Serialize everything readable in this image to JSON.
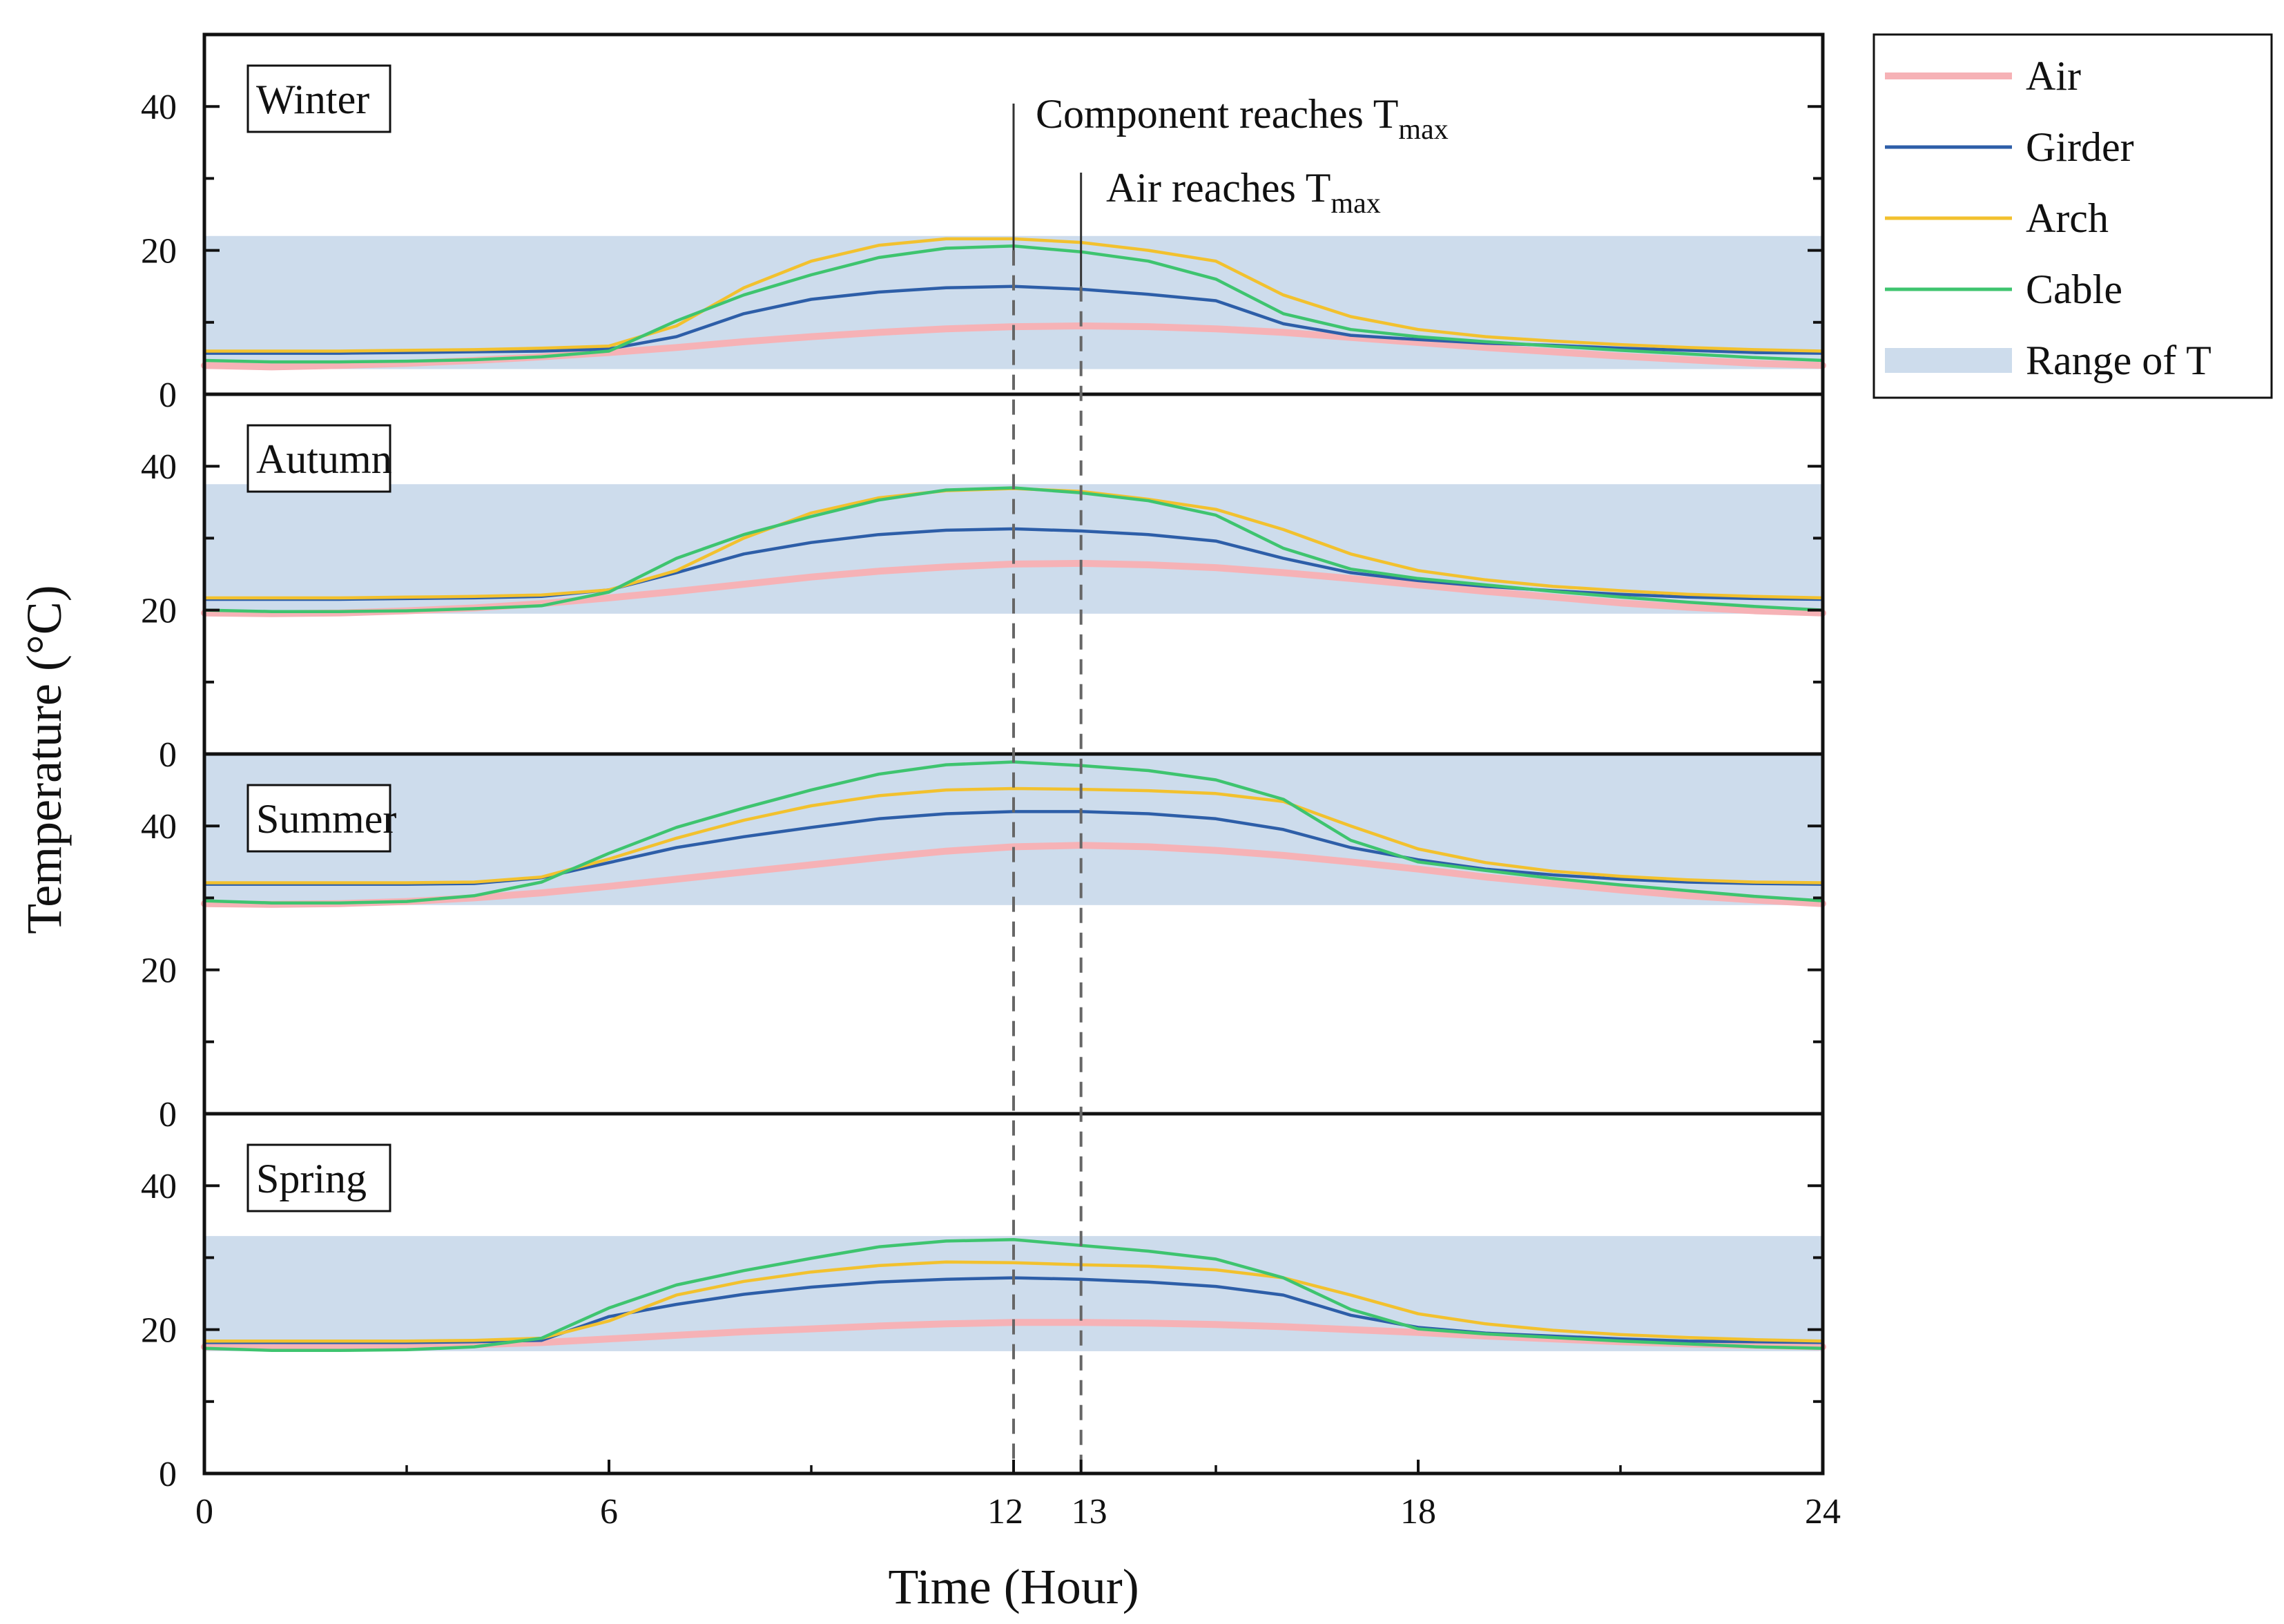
{
  "chart_data": {
    "type": "line",
    "xlabel": "Time (Hour)",
    "ylabel": "Temperature (°C)",
    "xlim": [
      0,
      24
    ],
    "ylim": [
      0,
      50
    ],
    "x_ticks": [
      0,
      6,
      12,
      13,
      18,
      24
    ],
    "y_tick_labels": [
      "0",
      "20",
      "40"
    ],
    "x": [
      0,
      1,
      2,
      3,
      4,
      5,
      6,
      7,
      8,
      9,
      10,
      11,
      12,
      13,
      14,
      15,
      16,
      17,
      18,
      19,
      20,
      21,
      22,
      23,
      24
    ],
    "colors": {
      "Air": "#f6b2b6",
      "Girder": "#2d5ea8",
      "Arch": "#f2c12e",
      "Cable": "#3ec46f",
      "Range of T": "#cddcec",
      "guide": "#666666"
    },
    "legend": [
      {
        "name": "Air",
        "kind": "line"
      },
      {
        "name": "Girder",
        "kind": "line"
      },
      {
        "name": "Arch",
        "kind": "line"
      },
      {
        "name": "Cable",
        "kind": "line"
      },
      {
        "name": "Range of T",
        "kind": "band"
      }
    ],
    "annotations": {
      "component": {
        "prefix": "Component reaches T",
        "sub": "max",
        "hour": 12
      },
      "air": {
        "prefix": "Air reaches T",
        "sub": "max",
        "hour": 13
      }
    },
    "panels": [
      {
        "season": "Winter",
        "range": [
          3.5,
          22
        ],
        "series": [
          {
            "name": "Air",
            "values": [
              4.0,
              3.8,
              4.0,
              4.3,
              4.7,
              5.2,
              5.8,
              6.5,
              7.3,
              8.0,
              8.6,
              9.1,
              9.4,
              9.5,
              9.4,
              9.1,
              8.6,
              7.9,
              7.2,
              6.5,
              5.9,
              5.3,
              4.8,
              4.3,
              4.0
            ]
          },
          {
            "name": "Girder",
            "values": [
              5.7,
              5.7,
              5.7,
              5.8,
              5.9,
              6.0,
              6.3,
              8.0,
              11.2,
              13.2,
              14.2,
              14.8,
              15.0,
              14.6,
              13.9,
              13.0,
              9.8,
              8.2,
              7.6,
              7.1,
              6.8,
              6.4,
              6.1,
              5.8,
              5.7
            ]
          },
          {
            "name": "Arch",
            "values": [
              6.0,
              6.0,
              6.0,
              6.1,
              6.2,
              6.4,
              6.7,
              9.5,
              14.8,
              18.5,
              20.7,
              21.6,
              21.6,
              21.1,
              20.0,
              18.5,
              13.8,
              10.8,
              9.0,
              8.0,
              7.4,
              6.9,
              6.5,
              6.2,
              6.0
            ]
          },
          {
            "name": "Cable",
            "values": [
              4.7,
              4.5,
              4.5,
              4.6,
              4.8,
              5.2,
              6.0,
              10.2,
              13.8,
              16.6,
              19.0,
              20.3,
              20.6,
              19.8,
              18.5,
              16.0,
              11.2,
              9.0,
              8.0,
              7.3,
              6.7,
              6.1,
              5.6,
              5.1,
              4.7
            ]
          }
        ]
      },
      {
        "season": "Autumn",
        "range": [
          19.5,
          37.5
        ],
        "series": [
          {
            "name": "Air",
            "values": [
              19.6,
              19.5,
              19.6,
              19.9,
              20.3,
              20.9,
              21.7,
              22.6,
              23.6,
              24.6,
              25.4,
              26.0,
              26.4,
              26.5,
              26.3,
              25.9,
              25.2,
              24.4,
              23.5,
              22.6,
              21.8,
              21.0,
              20.4,
              19.9,
              19.6
            ]
          },
          {
            "name": "Girder",
            "values": [
              21.5,
              21.5,
              21.5,
              21.6,
              21.7,
              21.9,
              22.8,
              25.2,
              27.8,
              29.4,
              30.5,
              31.1,
              31.3,
              31.0,
              30.5,
              29.6,
              27.2,
              25.2,
              24.1,
              23.3,
              22.7,
              22.2,
              21.8,
              21.6,
              21.5
            ]
          },
          {
            "name": "Arch",
            "values": [
              21.7,
              21.7,
              21.7,
              21.8,
              21.9,
              22.1,
              22.8,
              25.5,
              30.0,
              33.5,
              35.6,
              36.6,
              36.9,
              36.5,
              35.4,
              34.0,
              31.2,
              27.8,
              25.5,
              24.2,
              23.3,
              22.7,
              22.2,
              21.9,
              21.7
            ]
          },
          {
            "name": "Cable",
            "values": [
              20.0,
              19.8,
              19.8,
              19.9,
              20.2,
              20.6,
              22.5,
              27.2,
              30.5,
              33.0,
              35.3,
              36.7,
              37.0,
              36.3,
              35.2,
              33.2,
              28.6,
              25.7,
              24.4,
              23.5,
              22.6,
              21.8,
              21.1,
              20.5,
              20.0
            ]
          }
        ]
      },
      {
        "season": "Summer",
        "range": [
          29,
          50
        ],
        "series": [
          {
            "name": "Air",
            "values": [
              29.2,
              29.1,
              29.2,
              29.5,
              30.0,
              30.7,
              31.6,
              32.6,
              33.6,
              34.6,
              35.6,
              36.5,
              37.1,
              37.3,
              37.1,
              36.6,
              35.9,
              35.0,
              34.0,
              32.9,
              32.0,
              31.1,
              30.3,
              29.7,
              29.2
            ]
          },
          {
            "name": "Girder",
            "values": [
              31.9,
              31.9,
              31.9,
              31.9,
              32.0,
              32.8,
              34.9,
              37.0,
              38.5,
              39.8,
              41.0,
              41.7,
              42.0,
              42.0,
              41.7,
              41.0,
              39.5,
              37.0,
              35.3,
              34.0,
              33.2,
              32.6,
              32.2,
              32.0,
              31.9
            ]
          },
          {
            "name": "Arch",
            "values": [
              32.1,
              32.1,
              32.1,
              32.1,
              32.2,
              32.9,
              35.4,
              38.3,
              40.8,
              42.8,
              44.2,
              45.0,
              45.2,
              45.1,
              44.9,
              44.5,
              43.4,
              40.0,
              36.8,
              34.9,
              33.7,
              33.0,
              32.5,
              32.2,
              32.1
            ]
          },
          {
            "name": "Cable",
            "values": [
              29.6,
              29.3,
              29.3,
              29.5,
              30.3,
              32.2,
              36.2,
              39.8,
              42.5,
              45.0,
              47.2,
              48.5,
              48.9,
              48.4,
              47.7,
              46.4,
              43.7,
              38.0,
              35.0,
              33.8,
              32.7,
              31.8,
              31.0,
              30.2,
              29.6
            ]
          }
        ]
      },
      {
        "season": "Spring",
        "range": [
          17,
          33
        ],
        "series": [
          {
            "name": "Air",
            "values": [
              17.6,
              17.5,
              17.6,
              17.7,
              17.9,
              18.2,
              18.7,
              19.2,
              19.7,
              20.1,
              20.5,
              20.8,
              21.0,
              21.0,
              20.9,
              20.7,
              20.4,
              20.0,
              19.6,
              19.1,
              18.7,
              18.3,
              18.0,
              17.8,
              17.6
            ]
          },
          {
            "name": "Girder",
            "values": [
              18.2,
              18.2,
              18.2,
              18.2,
              18.3,
              18.5,
              21.8,
              23.5,
              24.9,
              25.9,
              26.6,
              27.0,
              27.2,
              27.0,
              26.6,
              26.0,
              24.8,
              22.0,
              20.3,
              19.5,
              19.1,
              18.7,
              18.4,
              18.3,
              18.2
            ]
          },
          {
            "name": "Arch",
            "values": [
              18.4,
              18.4,
              18.4,
              18.4,
              18.5,
              18.8,
              21.2,
              24.8,
              26.7,
              28.0,
              28.9,
              29.4,
              29.3,
              29.0,
              28.8,
              28.3,
              27.2,
              24.8,
              22.2,
              20.8,
              19.9,
              19.3,
              18.9,
              18.6,
              18.4
            ]
          },
          {
            "name": "Cable",
            "values": [
              17.4,
              17.1,
              17.1,
              17.2,
              17.6,
              18.8,
              23.0,
              26.2,
              28.2,
              29.9,
              31.5,
              32.3,
              32.5,
              31.7,
              30.9,
              29.8,
              27.2,
              22.8,
              20.1,
              19.4,
              18.9,
              18.4,
              18.0,
              17.6,
              17.4
            ]
          }
        ]
      }
    ]
  }
}
